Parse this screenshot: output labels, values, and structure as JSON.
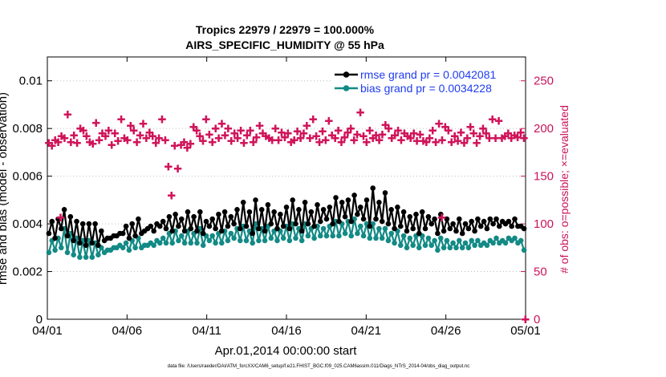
{
  "chart_data": {
    "type": "line",
    "title": "Tropics 22979 / 22979 = 100.000%",
    "subtitle": "AIRS_SPECIFIC_HUMIDITY @ 55 hPa",
    "xlabel": "Apr.01,2014 00:00:00 start",
    "ylabel": "rmse and bias (model - observation)",
    "y2label": "# of obs: o=possible; ×=evaluated",
    "xlim": [
      0,
      30
    ],
    "ylim": [
      0,
      0.011
    ],
    "y2lim": [
      0,
      275
    ],
    "x_ticks": [
      0,
      5,
      10,
      15,
      20,
      25,
      30
    ],
    "x_tick_labels": [
      "04/01",
      "04/06",
      "04/11",
      "04/16",
      "04/21",
      "04/26",
      "05/01"
    ],
    "y_ticks": [
      0,
      0.002,
      0.004,
      0.006,
      0.008,
      0.01
    ],
    "y_tick_labels": [
      "0",
      "0.002",
      "0.004",
      "0.006",
      "0.008",
      "0.01"
    ],
    "y2_ticks": [
      0,
      50,
      100,
      150,
      200,
      250
    ],
    "y2_tick_labels": [
      "0",
      "50",
      "100",
      "150",
      "200",
      "250"
    ],
    "legend_position": "top-right",
    "colors": {
      "rmse": "#000000",
      "bias": "#138a85",
      "obs": "#d0145a",
      "axis_right": "#c8145a",
      "legend_text": "#1f3cf0"
    },
    "series": [
      {
        "name": "rmse grand pr = 0.0042081",
        "values": [
          0.0036,
          0.0041,
          0.0034,
          0.0042,
          0.0038,
          0.0046,
          0.0035,
          0.0043,
          0.0033,
          0.0041,
          0.0032,
          0.004,
          0.0031,
          0.004,
          0.0032,
          0.004,
          0.0031,
          0.0037,
          0.0033,
          0.0034,
          0.0034,
          0.0035,
          0.0035,
          0.0036,
          0.0036,
          0.0039,
          0.0034,
          0.004,
          0.0035,
          0.0042,
          0.0036,
          0.0037,
          0.0038,
          0.0039,
          0.0037,
          0.004,
          0.0039,
          0.0041,
          0.0038,
          0.0043,
          0.0037,
          0.0044,
          0.0039,
          0.0042,
          0.0037,
          0.0045,
          0.0038,
          0.0043,
          0.0037,
          0.0045,
          0.0036,
          0.0041,
          0.0039,
          0.0042,
          0.0038,
          0.0044,
          0.0037,
          0.0045,
          0.0039,
          0.0043,
          0.004,
          0.0046,
          0.0038,
          0.0049,
          0.0039,
          0.0045,
          0.0036,
          0.005,
          0.0038,
          0.0046,
          0.0037,
          0.0048,
          0.004,
          0.0045,
          0.0038,
          0.0044,
          0.0039,
          0.0047,
          0.0038,
          0.005,
          0.004,
          0.0046,
          0.0037,
          0.0049,
          0.004,
          0.0045,
          0.0039,
          0.0048,
          0.0041,
          0.0046,
          0.0042,
          0.0047,
          0.004,
          0.0051,
          0.0041,
          0.0049,
          0.0043,
          0.005,
          0.0041,
          0.0052,
          0.0044,
          0.0047,
          0.0042,
          0.005,
          0.0039,
          0.0055,
          0.0042,
          0.0049,
          0.0041,
          0.0053,
          0.004,
          0.0046,
          0.0038,
          0.0047,
          0.0039,
          0.0045,
          0.0037,
          0.0043,
          0.0038,
          0.0044,
          0.0036,
          0.0045,
          0.0038,
          0.0043,
          0.004,
          0.0042,
          0.0036,
          0.0044,
          0.0037,
          0.0042,
          0.0038,
          0.004,
          0.0037,
          0.0042,
          0.0036,
          0.004,
          0.0038,
          0.0041,
          0.0037,
          0.0042,
          0.0039,
          0.0041,
          0.0038,
          0.0042,
          0.004,
          0.0042,
          0.0039,
          0.0041,
          0.004,
          0.0041,
          0.0039,
          0.0042,
          0.0039,
          0.0039,
          0.0038
        ]
      },
      {
        "name": "bias grand pr = 0.0034228",
        "values": [
          0.0028,
          0.0033,
          0.0029,
          0.0034,
          0.003,
          0.0038,
          0.0028,
          0.0036,
          0.0027,
          0.0034,
          0.0026,
          0.0033,
          0.0026,
          0.0033,
          0.0026,
          0.0032,
          0.0027,
          0.003,
          0.0028,
          0.0029,
          0.0029,
          0.003,
          0.003,
          0.0031,
          0.003,
          0.0032,
          0.0029,
          0.0033,
          0.003,
          0.0034,
          0.003,
          0.0031,
          0.0031,
          0.0032,
          0.0031,
          0.0033,
          0.0032,
          0.0034,
          0.0032,
          0.0036,
          0.0032,
          0.0037,
          0.0033,
          0.0035,
          0.0032,
          0.0037,
          0.0032,
          0.0036,
          0.0032,
          0.0038,
          0.0031,
          0.0035,
          0.0033,
          0.0035,
          0.0032,
          0.0036,
          0.0032,
          0.0037,
          0.0033,
          0.0036,
          0.0034,
          0.0038,
          0.0033,
          0.0039,
          0.0033,
          0.0037,
          0.0032,
          0.004,
          0.0033,
          0.0038,
          0.0033,
          0.0039,
          0.0034,
          0.0037,
          0.0033,
          0.0037,
          0.0034,
          0.0039,
          0.0033,
          0.004,
          0.0034,
          0.0038,
          0.0033,
          0.004,
          0.0035,
          0.0038,
          0.0034,
          0.0039,
          0.0035,
          0.0038,
          0.0035,
          0.0039,
          0.0035,
          0.0041,
          0.0035,
          0.004,
          0.0036,
          0.0041,
          0.0035,
          0.0042,
          0.0036,
          0.0039,
          0.0035,
          0.004,
          0.0034,
          0.004,
          0.0034,
          0.0038,
          0.0034,
          0.0038,
          0.0033,
          0.0036,
          0.0032,
          0.0037,
          0.0031,
          0.0035,
          0.003,
          0.0034,
          0.0031,
          0.0035,
          0.003,
          0.0035,
          0.0031,
          0.0034,
          0.0031,
          0.0033,
          0.0029,
          0.0034,
          0.003,
          0.0033,
          0.003,
          0.0032,
          0.003,
          0.0033,
          0.003,
          0.0032,
          0.003,
          0.0033,
          0.0031,
          0.0033,
          0.0031,
          0.0032,
          0.0031,
          0.0033,
          0.0032,
          0.0034,
          0.0032,
          0.0033,
          0.0032,
          0.0034,
          0.0033,
          0.0034,
          0.0032,
          0.0033,
          0.0029
        ]
      },
      {
        "name": "# of obs evaluated",
        "axis": "right",
        "values": [
          185,
          182,
          188,
          186,
          192,
          190,
          215,
          186,
          193,
          185,
          200,
          198,
          192,
          186,
          184,
          206,
          188,
          195,
          192,
          198,
          183,
          195,
          187,
          210,
          190,
          188,
          203,
          198,
          186,
          193,
          205,
          190,
          196,
          192,
          185,
          190,
          210,
          188,
          160,
          130,
          182,
          158,
          183,
          186,
          180,
          184,
          202,
          198,
          192,
          187,
          210,
          194,
          186,
          200,
          190,
          205,
          193,
          200,
          187,
          195,
          190,
          198,
          185,
          193,
          198,
          186,
          191,
          203,
          195,
          192,
          190,
          188,
          200,
          188,
          196,
          191,
          195,
          186,
          188,
          197,
          190,
          195,
          203,
          190,
          210,
          192,
          186,
          197,
          188,
          208,
          193,
          190,
          198,
          186,
          191,
          196,
          200,
          188,
          194,
          217,
          192,
          186,
          198,
          190,
          193,
          188,
          194,
          204,
          200,
          190,
          193,
          198,
          188,
          195,
          192,
          190,
          195,
          187,
          194,
          187,
          186,
          190,
          198,
          186,
          205,
          188,
          202,
          198,
          186,
          192,
          187,
          196,
          185,
          190,
          202,
          195,
          185,
          192,
          200,
          195,
          190,
          210,
          190,
          208,
          190,
          192,
          195,
          190,
          193,
          191,
          196,
          190
        ]
      }
    ],
    "marker_glyph": "✚",
    "obs_count_rows": [
      {
        "x": 0.833,
        "values": [
          107
        ]
      },
      {
        "x": 24.75,
        "values": [
          107
        ]
      },
      {
        "x": 30.0,
        "values": [
          0
        ]
      }
    ]
  },
  "legend": {
    "rmse_label": "rmse grand pr = 0.0042081",
    "bias_label": "bias grand pr = 0.0034228"
  },
  "footer": {
    "data_file": "data file: /Users/raeder/DAI/ATM_forcXX/CAM6_setup/f.e21.FHIST_BGC.f09_025.CAM6assim.011/Diags_NTrS_2014-04/obs_diag_output.nc"
  }
}
